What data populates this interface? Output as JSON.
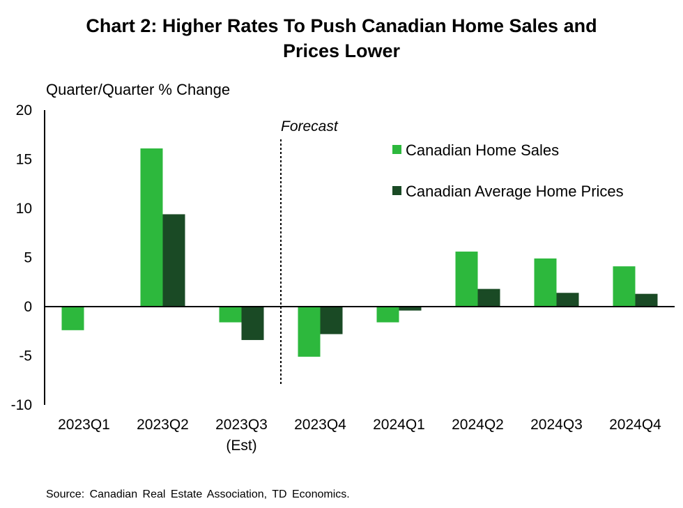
{
  "chart_data": {
    "type": "bar",
    "title_line1": "Chart 2: Higher Rates To Push Canadian Home Sales and",
    "title_line2": "Prices Lower",
    "ylabel": "Quarter/Quarter % Change",
    "ylim": [
      -10,
      20
    ],
    "yticks": [
      "20",
      "15",
      "10",
      "5",
      "0",
      "-5",
      "-10"
    ],
    "ytick_values": [
      20,
      15,
      10,
      5,
      0,
      -5,
      -10
    ],
    "categories": [
      "2023Q1",
      "2023Q2",
      "2023Q3",
      "2023Q4",
      "2024Q1",
      "2024Q2",
      "2024Q3",
      "2024Q4"
    ],
    "category_sublabels": [
      "",
      "",
      "(Est)",
      "",
      "",
      "",
      "",
      ""
    ],
    "series": [
      {
        "name": "Canadian Home Sales",
        "color": "#2db83d",
        "values": [
          -2.4,
          16.1,
          -1.6,
          -5.1,
          -1.6,
          5.6,
          4.9,
          4.1
        ]
      },
      {
        "name": "Canadian Average Home Prices",
        "color": "#1a4a25",
        "values": [
          0.0,
          9.4,
          -3.4,
          -2.8,
          -0.4,
          1.8,
          1.4,
          1.3
        ]
      }
    ],
    "annotation": "Forecast",
    "forecast_divider_after_category": "2023Q3",
    "legend_position": "top-right",
    "grid": false,
    "source": "Source: Canadian Real Estate Association, TD Economics."
  }
}
